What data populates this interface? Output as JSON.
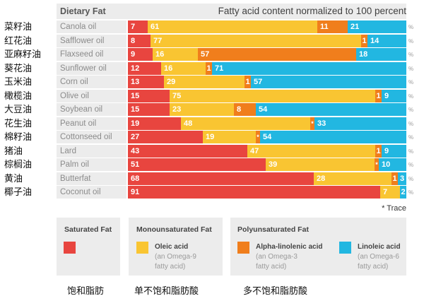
{
  "chart_data": {
    "type": "bar",
    "orientation": "horizontal",
    "stacked": true,
    "title": "Fatty acid content normalized to 100 percent",
    "category_header": "Dietary Fat",
    "categories": [
      "Canola oil",
      "Safflower oil",
      "Flaxseed oil",
      "Sunflower oil",
      "Corn oil",
      "Olive oil",
      "Soybean oil",
      "Peanut oil",
      "Cottonseed oil",
      "Lard",
      "Palm oil",
      "Butterfat",
      "Coconut oil"
    ],
    "categories_zh": [
      "菜籽油",
      "红花油",
      "亚麻籽油",
      "葵花油",
      "玉米油",
      "橄榄油",
      "大豆油",
      "花生油",
      "棉籽油",
      "猪油",
      "棕榈油",
      "黄油",
      "椰子油"
    ],
    "unit": "%",
    "xlim": [
      0,
      100
    ],
    "grid": false,
    "legend_position": "bottom",
    "series": [
      {
        "name": "Saturated Fat",
        "color": "#E8453F",
        "values": [
          7,
          8,
          9,
          12,
          13,
          15,
          15,
          19,
          27,
          43,
          51,
          68,
          91
        ]
      },
      {
        "name": "Oleic acid",
        "color": "#F9C532",
        "values": [
          61,
          77,
          16,
          16,
          29,
          75,
          23,
          48,
          19,
          47,
          39,
          28,
          7
        ]
      },
      {
        "name": "Alpha-linolenic acid",
        "color": "#F07E1C",
        "values": [
          11,
          1,
          57,
          1,
          1,
          1,
          8,
          "*",
          "*",
          1,
          "*",
          1,
          null
        ]
      },
      {
        "name": "Linoleic acid",
        "color": "#22B7E1",
        "values": [
          21,
          14,
          18,
          71,
          57,
          9,
          54,
          33,
          54,
          9,
          10,
          3,
          2
        ]
      }
    ],
    "footnote": "* Trace"
  },
  "legend": {
    "saturated": {
      "label_zh": "饱和脂肪"
    },
    "monounsaturated": {
      "title": "Monounsaturated Fat",
      "label_zh": "单不饱和脂肪酸",
      "oleic_note": [
        "(an Omega-9",
        "fatty acid)"
      ]
    },
    "polyunsaturated": {
      "title": "Polyunsaturated Fat",
      "label_zh": "多不饱和脂肪酸",
      "alpha_linolenic_note": [
        "(an Omega-3",
        "fatty acid)"
      ],
      "linoleic_note": [
        "(an Omega-6",
        "fatty acid)"
      ]
    }
  }
}
